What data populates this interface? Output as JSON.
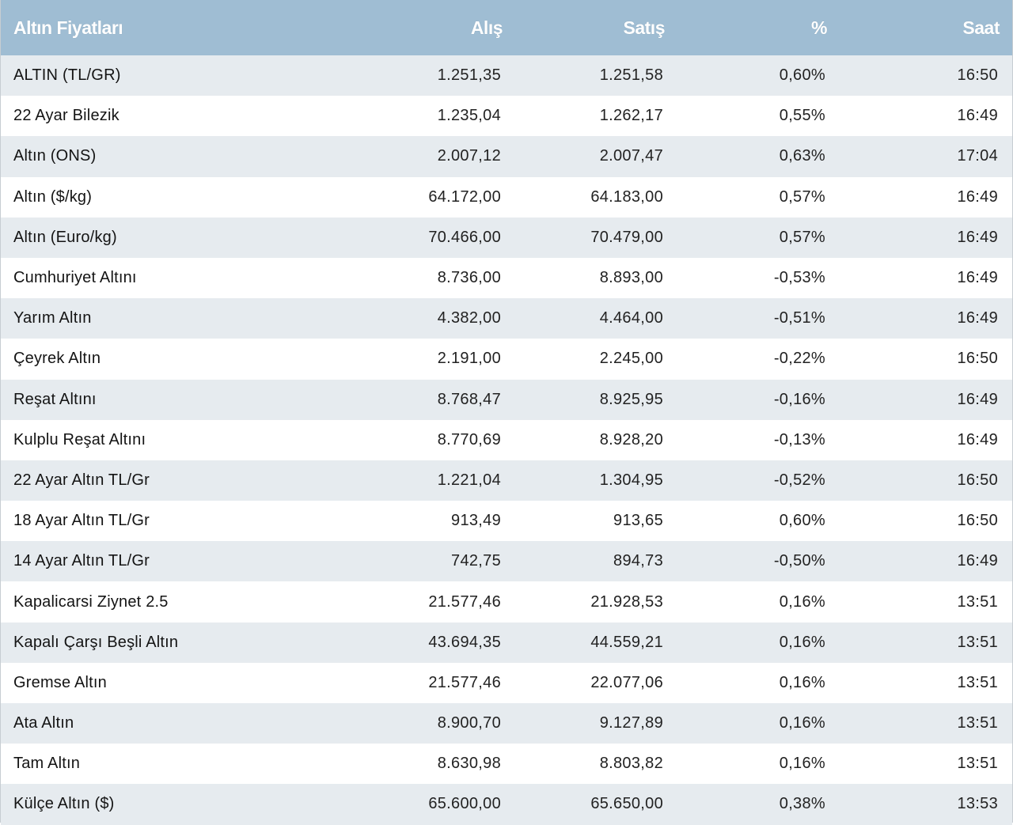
{
  "table": {
    "headers": {
      "name": "Altın Fiyatları",
      "alis": "Alış",
      "satis": "Satış",
      "pct": "%",
      "saat": "Saat"
    },
    "rows": [
      {
        "name": "ALTIN (TL/GR)",
        "alis": "1.251,35",
        "satis": "1.251,58",
        "pct": "0,60%",
        "saat": "16:50"
      },
      {
        "name": "22 Ayar Bilezik",
        "alis": "1.235,04",
        "satis": "1.262,17",
        "pct": "0,55%",
        "saat": "16:49"
      },
      {
        "name": "Altın (ONS)",
        "alis": "2.007,12",
        "satis": "2.007,47",
        "pct": "0,63%",
        "saat": "17:04"
      },
      {
        "name": "Altın ($/kg)",
        "alis": "64.172,00",
        "satis": "64.183,00",
        "pct": "0,57%",
        "saat": "16:49"
      },
      {
        "name": "Altın (Euro/kg)",
        "alis": "70.466,00",
        "satis": "70.479,00",
        "pct": "0,57%",
        "saat": "16:49"
      },
      {
        "name": "Cumhuriyet Altını",
        "alis": "8.736,00",
        "satis": "8.893,00",
        "pct": "-0,53%",
        "saat": "16:49"
      },
      {
        "name": "Yarım Altın",
        "alis": "4.382,00",
        "satis": "4.464,00",
        "pct": "-0,51%",
        "saat": "16:49"
      },
      {
        "name": "Çeyrek Altın",
        "alis": "2.191,00",
        "satis": "2.245,00",
        "pct": "-0,22%",
        "saat": "16:50"
      },
      {
        "name": "Reşat Altını",
        "alis": "8.768,47",
        "satis": "8.925,95",
        "pct": "-0,16%",
        "saat": "16:49"
      },
      {
        "name": "Kulplu Reşat Altını",
        "alis": "8.770,69",
        "satis": "8.928,20",
        "pct": "-0,13%",
        "saat": "16:49"
      },
      {
        "name": "22 Ayar Altın TL/Gr",
        "alis": "1.221,04",
        "satis": "1.304,95",
        "pct": "-0,52%",
        "saat": "16:50"
      },
      {
        "name": "18 Ayar Altın TL/Gr",
        "alis": "913,49",
        "satis": "913,65",
        "pct": "0,60%",
        "saat": "16:50"
      },
      {
        "name": "14 Ayar Altın TL/Gr",
        "alis": "742,75",
        "satis": "894,73",
        "pct": "-0,50%",
        "saat": "16:49"
      },
      {
        "name": "Kapalicarsi Ziynet 2.5",
        "alis": "21.577,46",
        "satis": "21.928,53",
        "pct": "0,16%",
        "saat": "13:51"
      },
      {
        "name": "Kapalı Çarşı Beşli Altın",
        "alis": "43.694,35",
        "satis": "44.559,21",
        "pct": "0,16%",
        "saat": "13:51"
      },
      {
        "name": "Gremse Altın",
        "alis": "21.577,46",
        "satis": "22.077,06",
        "pct": "0,16%",
        "saat": "13:51"
      },
      {
        "name": "Ata Altın",
        "alis": "8.900,70",
        "satis": "9.127,89",
        "pct": "0,16%",
        "saat": "13:51"
      },
      {
        "name": "Tam Altın",
        "alis": "8.630,98",
        "satis": "8.803,82",
        "pct": "0,16%",
        "saat": "13:51"
      },
      {
        "name": "Külçe Altın ($)",
        "alis": "65.600,00",
        "satis": "65.650,00",
        "pct": "0,38%",
        "saat": "13:53"
      }
    ]
  },
  "colors": {
    "header_bg": "#9fbdd3",
    "header_text": "#ffffff",
    "row_alt_bg": "#e6ebef",
    "row_bg": "#ffffff"
  }
}
